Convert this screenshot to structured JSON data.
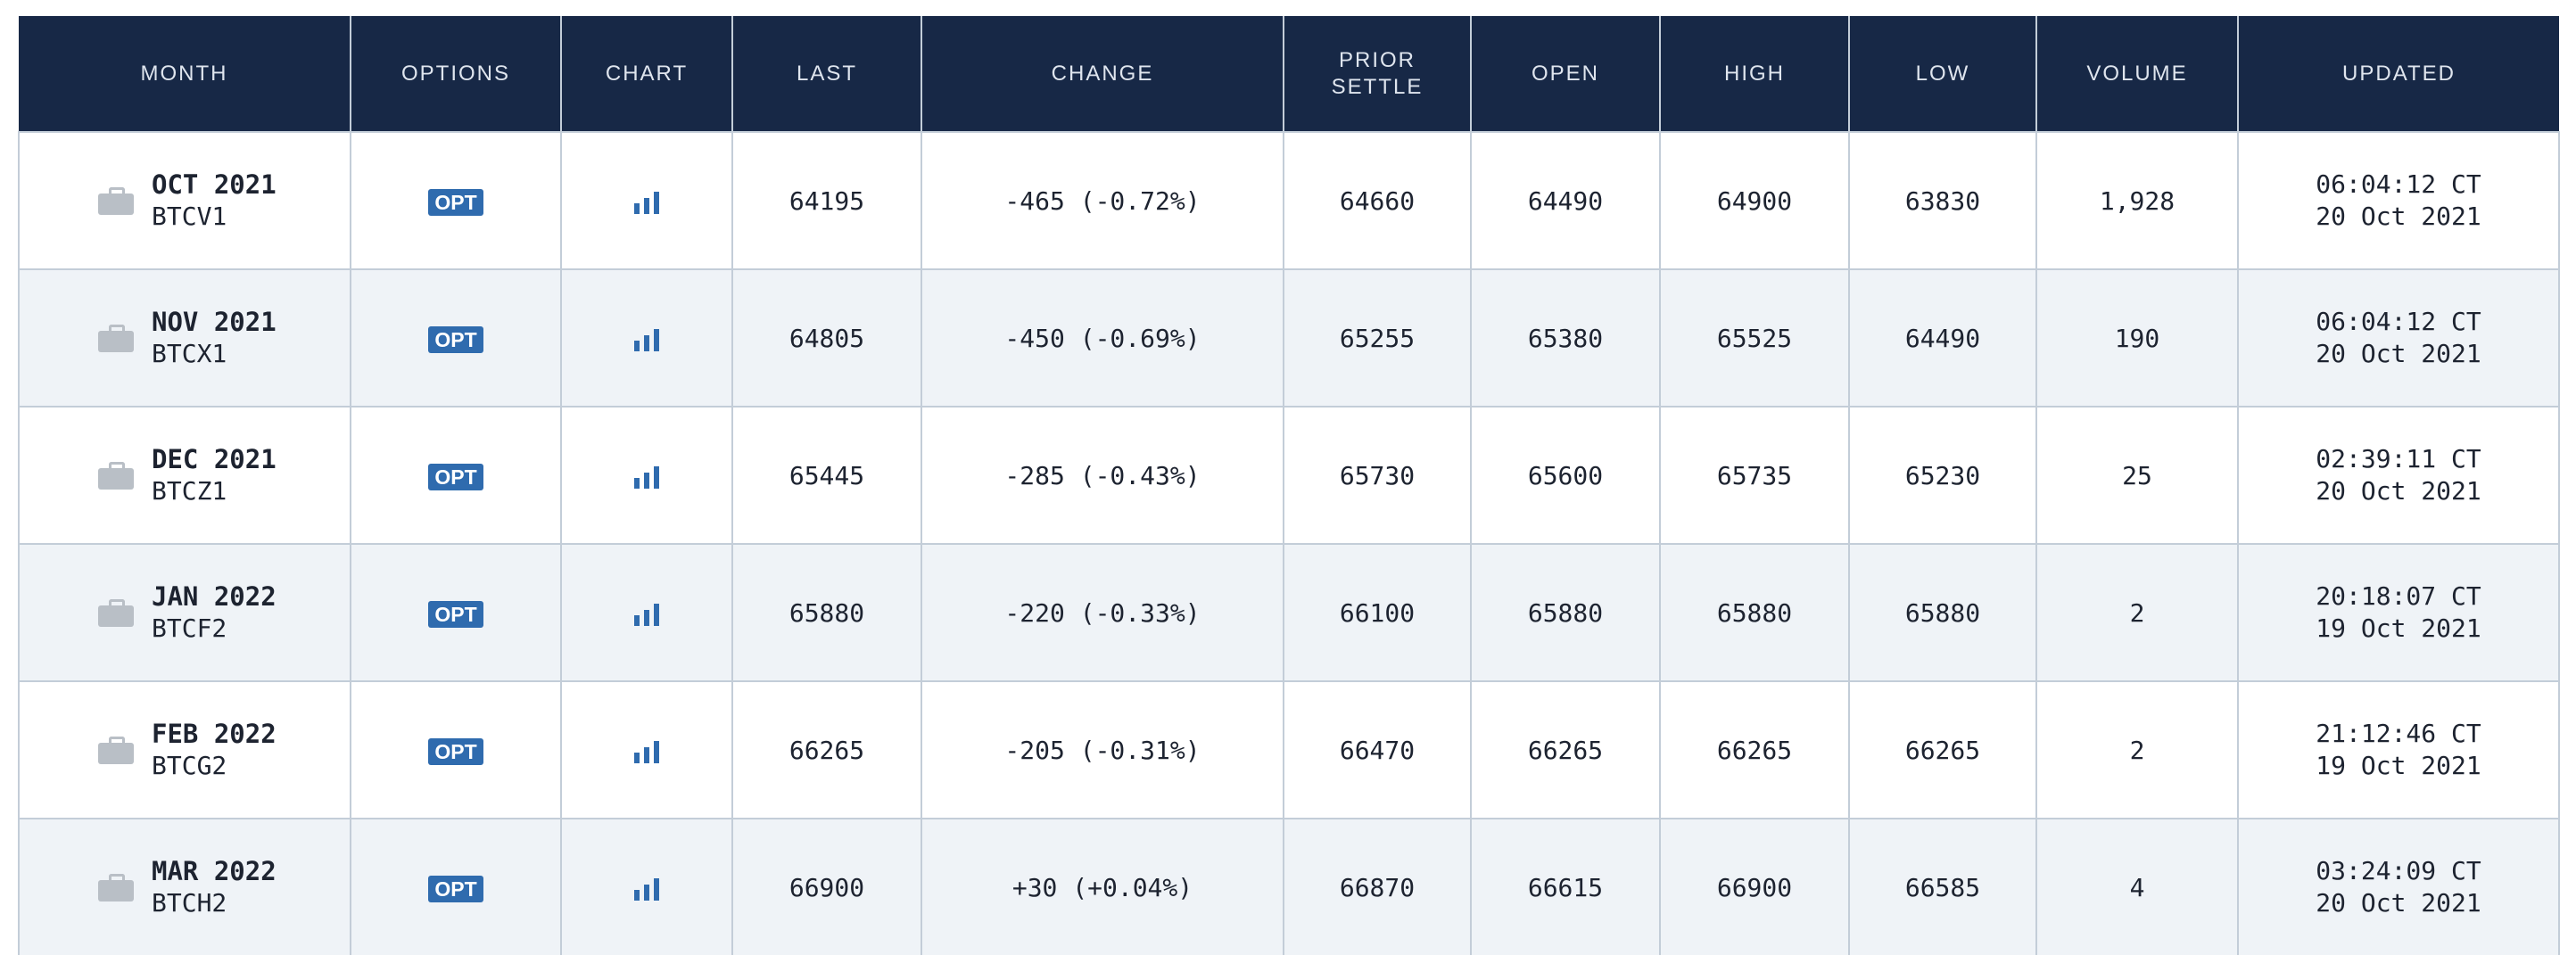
{
  "columns": {
    "month": "MONTH",
    "options": "OPTIONS",
    "chart": "CHART",
    "last": "LAST",
    "change": "CHANGE",
    "prior_settle_1": "PRIOR",
    "prior_settle_2": "SETTLE",
    "open": "OPEN",
    "high": "HIGH",
    "low": "LOW",
    "volume": "VOLUME",
    "updated": "UPDATED"
  },
  "icons": {
    "month": "briefcase-icon",
    "chart": "bar-chart-icon"
  },
  "colors": {
    "header_bg": "#172846",
    "opt_badge": "#2f6bae",
    "negative": "#e3241b",
    "positive": "#2b7a0b"
  },
  "rows": [
    {
      "month": "OCT 2021",
      "code": "BTCV1",
      "opt": "OPT",
      "last": "64195",
      "change": "-465 (-0.72%)",
      "direction": "down",
      "prior_settle": "64660",
      "open": "64490",
      "high": "64900",
      "low": "63830",
      "volume": "1,928",
      "time": "06:04:12 CT",
      "date": "20 Oct 2021"
    },
    {
      "month": "NOV 2021",
      "code": "BTCX1",
      "opt": "OPT",
      "last": "64805",
      "change": "-450 (-0.69%)",
      "direction": "down",
      "prior_settle": "65255",
      "open": "65380",
      "high": "65525",
      "low": "64490",
      "volume": "190",
      "time": "06:04:12 CT",
      "date": "20 Oct 2021"
    },
    {
      "month": "DEC 2021",
      "code": "BTCZ1",
      "opt": "OPT",
      "last": "65445",
      "change": "-285 (-0.43%)",
      "direction": "down",
      "prior_settle": "65730",
      "open": "65600",
      "high": "65735",
      "low": "65230",
      "volume": "25",
      "time": "02:39:11 CT",
      "date": "20 Oct 2021"
    },
    {
      "month": "JAN 2022",
      "code": "BTCF2",
      "opt": "OPT",
      "last": "65880",
      "change": "-220 (-0.33%)",
      "direction": "down",
      "prior_settle": "66100",
      "open": "65880",
      "high": "65880",
      "low": "65880",
      "volume": "2",
      "time": "20:18:07 CT",
      "date": "19 Oct 2021"
    },
    {
      "month": "FEB 2022",
      "code": "BTCG2",
      "opt": "OPT",
      "last": "66265",
      "change": "-205 (-0.31%)",
      "direction": "down",
      "prior_settle": "66470",
      "open": "66265",
      "high": "66265",
      "low": "66265",
      "volume": "2",
      "time": "21:12:46 CT",
      "date": "19 Oct 2021"
    },
    {
      "month": "MAR 2022",
      "code": "BTCH2",
      "opt": "OPT",
      "last": "66900",
      "change": "+30 (+0.04%)",
      "direction": "up",
      "prior_settle": "66870",
      "open": "66615",
      "high": "66900",
      "low": "66585",
      "volume": "4",
      "time": "03:24:09 CT",
      "date": "20 Oct 2021"
    }
  ]
}
